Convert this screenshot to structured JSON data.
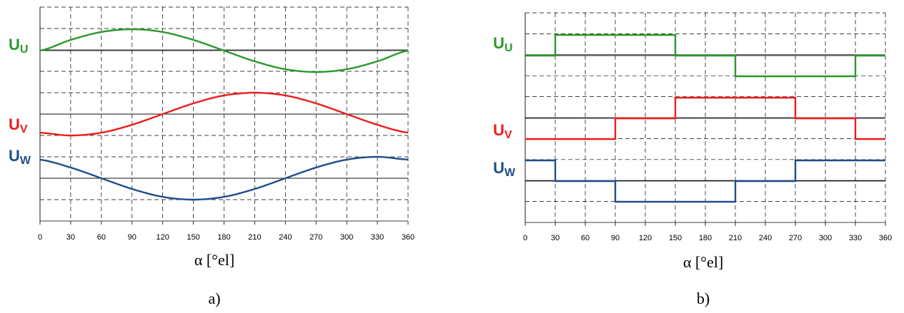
{
  "chart_data": [
    {
      "type": "line",
      "panel_label": "a)",
      "xlabel": "α [°el]",
      "xticks": [
        0,
        30,
        60,
        90,
        120,
        150,
        180,
        210,
        240,
        270,
        300,
        330,
        360
      ],
      "xlim": [
        0,
        360
      ],
      "grid": true,
      "series": [
        {
          "name_main": "U",
          "name_sub": "U",
          "color": "#2a9a2a",
          "x": [
            0,
            30,
            60,
            90,
            120,
            150,
            180,
            210,
            240,
            270,
            300,
            330,
            360
          ],
          "y": [
            0,
            0.5,
            0.87,
            1,
            0.87,
            0.5,
            0,
            -0.5,
            -0.87,
            -1,
            -0.87,
            -0.5,
            0
          ]
        },
        {
          "name_main": "U",
          "name_sub": "V",
          "color": "#ee1c1c",
          "x": [
            0,
            30,
            60,
            90,
            120,
            150,
            180,
            210,
            240,
            270,
            300,
            330,
            360
          ],
          "y": [
            -0.87,
            -1,
            -0.87,
            -0.5,
            0,
            0.5,
            0.87,
            1,
            0.87,
            0.5,
            0,
            -0.5,
            -0.87
          ]
        },
        {
          "name_main": "U",
          "name_sub": "W",
          "color": "#1f4e8c",
          "x": [
            0,
            30,
            60,
            90,
            120,
            150,
            180,
            210,
            240,
            270,
            300,
            330,
            360
          ],
          "y": [
            0.87,
            0.5,
            0,
            -0.5,
            -0.87,
            -1,
            -0.87,
            -0.5,
            0,
            0.5,
            0.87,
            1,
            0.87
          ]
        }
      ]
    },
    {
      "type": "line",
      "panel_label": "b)",
      "xlabel": "α [°el]",
      "xticks": [
        0,
        30,
        60,
        90,
        120,
        150,
        180,
        210,
        240,
        270,
        300,
        330,
        360
      ],
      "xlim": [
        0,
        360
      ],
      "grid": true,
      "step": true,
      "series": [
        {
          "name_main": "U",
          "name_sub": "U",
          "color": "#2a9a2a",
          "x": [
            0,
            30,
            150,
            210,
            330,
            360
          ],
          "y": [
            0,
            1,
            0,
            -1,
            0,
            0
          ]
        },
        {
          "name_main": "U",
          "name_sub": "V",
          "color": "#ee1c1c",
          "x": [
            0,
            90,
            150,
            270,
            330,
            360
          ],
          "y": [
            -1,
            0,
            1,
            0,
            -1,
            -1
          ]
        },
        {
          "name_main": "U",
          "name_sub": "W",
          "color": "#1f4e8c",
          "x": [
            0,
            30,
            90,
            210,
            270,
            360
          ],
          "y": [
            1,
            0,
            -1,
            0,
            1,
            1
          ]
        }
      ]
    }
  ]
}
